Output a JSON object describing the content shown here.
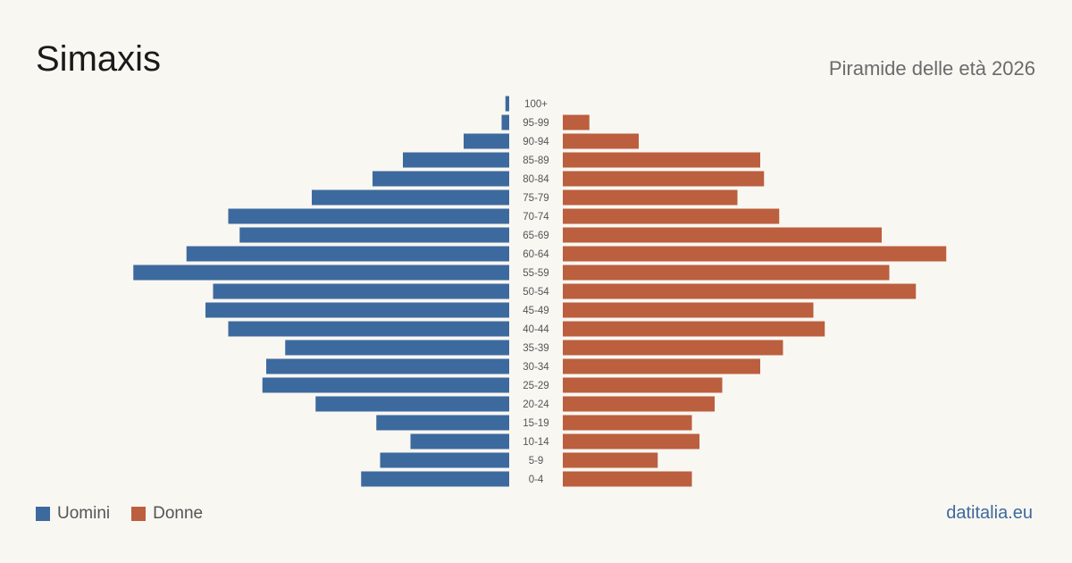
{
  "header": {
    "title": "Simaxis",
    "subtitle": "Piramide delle età 2026"
  },
  "legend": {
    "male_label": "Uomini",
    "female_label": "Donne"
  },
  "footer": {
    "source": "datitalia.eu"
  },
  "colors": {
    "male": "#3d6a9e",
    "female": "#bb5f3e",
    "background": "#f9f7f2"
  },
  "chart_data": {
    "type": "bar",
    "orientation": "horizontal-pyramid",
    "title": "Piramide delle età 2026",
    "categories": [
      "100+",
      "95-99",
      "90-94",
      "85-89",
      "80-84",
      "75-79",
      "70-74",
      "65-69",
      "60-64",
      "55-59",
      "50-54",
      "45-49",
      "40-44",
      "35-39",
      "30-34",
      "25-29",
      "20-24",
      "15-19",
      "10-14",
      "5-9",
      "0-4"
    ],
    "series": [
      {
        "name": "Uomini",
        "values": [
          1,
          2,
          12,
          28,
          36,
          52,
          74,
          71,
          85,
          99,
          78,
          80,
          74,
          59,
          64,
          65,
          51,
          35,
          26,
          34,
          39
        ]
      },
      {
        "name": "Donne",
        "values": [
          0,
          7,
          20,
          52,
          53,
          46,
          57,
          84,
          101,
          86,
          93,
          66,
          69,
          58,
          52,
          42,
          40,
          34,
          36,
          25,
          34
        ]
      }
    ],
    "legend_position": "bottom-left",
    "grid": false
  }
}
